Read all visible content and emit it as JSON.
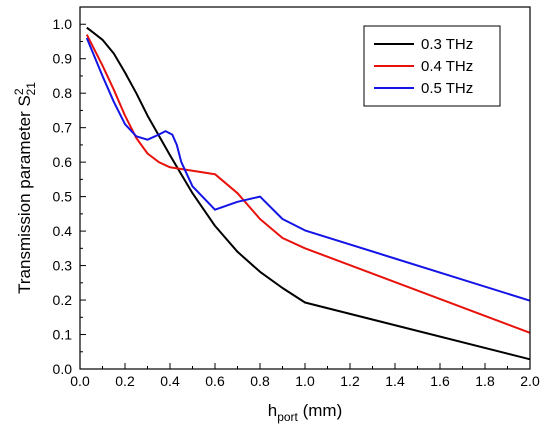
{
  "chart_data": {
    "type": "line",
    "xlabel": {
      "base": "h",
      "sub": "port",
      "suffix": " (mm)"
    },
    "ylabel": {
      "base": "Transmission parameter S",
      "sup": "2",
      "sub": "21"
    },
    "xlim": [
      0.0,
      2.0
    ],
    "ylim": [
      0.0,
      1.05
    ],
    "xticks": [
      "0.0",
      "0.2",
      "0.4",
      "0.6",
      "0.8",
      "1.0",
      "1.2",
      "1.4",
      "1.6",
      "1.8",
      "2.0"
    ],
    "yticks": [
      "0.0",
      "0.1",
      "0.2",
      "0.3",
      "0.4",
      "0.5",
      "0.6",
      "0.7",
      "0.8",
      "0.9",
      "1.0"
    ],
    "legend_position": "top-right",
    "series": [
      {
        "name": "0.3 THz",
        "color": "#000000",
        "x": [
          0.03,
          0.05,
          0.1,
          0.15,
          0.2,
          0.25,
          0.3,
          0.4,
          0.5,
          0.6,
          0.7,
          0.8,
          0.9,
          1.0,
          2.0
        ],
        "y": [
          0.99,
          0.98,
          0.955,
          0.915,
          0.86,
          0.8,
          0.735,
          0.62,
          0.51,
          0.415,
          0.34,
          0.282,
          0.235,
          0.193,
          0.028
        ]
      },
      {
        "name": "0.4 THz",
        "color": "#e8120c",
        "x": [
          0.03,
          0.1,
          0.15,
          0.2,
          0.25,
          0.3,
          0.35,
          0.4,
          0.5,
          0.6,
          0.7,
          0.8,
          0.9,
          1.0,
          2.0
        ],
        "y": [
          0.97,
          0.88,
          0.81,
          0.735,
          0.67,
          0.625,
          0.6,
          0.585,
          0.575,
          0.565,
          0.51,
          0.435,
          0.38,
          0.35,
          0.105
        ]
      },
      {
        "name": "0.5 THz",
        "color": "#1414e6",
        "x": [
          0.03,
          0.1,
          0.15,
          0.2,
          0.25,
          0.3,
          0.35,
          0.38,
          0.41,
          0.43,
          0.45,
          0.5,
          0.6,
          0.7,
          0.8,
          0.9,
          1.0,
          2.0
        ],
        "y": [
          0.96,
          0.85,
          0.775,
          0.71,
          0.675,
          0.665,
          0.68,
          0.69,
          0.68,
          0.65,
          0.6,
          0.53,
          0.462,
          0.485,
          0.5,
          0.435,
          0.402,
          0.198
        ]
      }
    ]
  }
}
